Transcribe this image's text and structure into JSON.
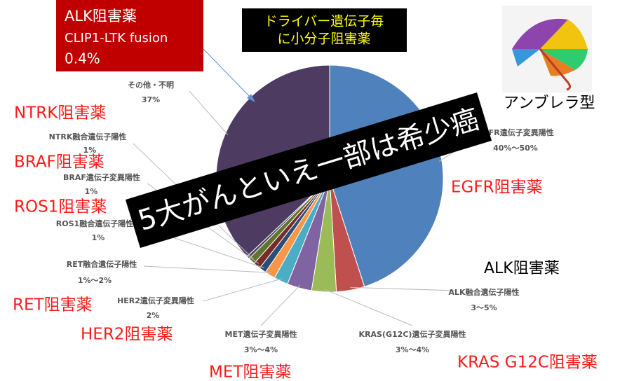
{
  "chart_data": {
    "type": "pie",
    "categories": [
      "EGFR遺伝子変異陽性",
      "ALK融合遺伝子陽性",
      "KRAS(G12C)遺伝子変異陽性",
      "MET遺伝子変異陽性",
      "HER2遺伝子変異陽性",
      "RET融合遺伝子陽性",
      "ROS1融合遺伝子陽性",
      "BRAF遺伝子変異陽性",
      "NTRK融合遺伝子陽性",
      "CLIP1-LTK fusion",
      "その他・不明"
    ],
    "values": [
      45,
      4,
      3.5,
      3.5,
      2,
      1.5,
      1,
      1,
      1,
      0.4,
      37
    ],
    "value_labels": [
      "40%～50%",
      "3～5%",
      "3%～4%",
      "3%～4%",
      "2%",
      "1%～2%",
      "1%",
      "1%",
      "1%",
      "0.4%",
      "37%"
    ],
    "colors": [
      "#4f81bd",
      "#c0504d",
      "#9bbb59",
      "#8064a2",
      "#4bacc6",
      "#f79646",
      "#2c4d75",
      "#772c2a",
      "#5f7530",
      "#4d3b62",
      "#4d3b62"
    ],
    "drug_labels": [
      "EGFR阻害薬",
      "ALK阻害薬",
      "KRAS G12C阻害薬",
      "MET阻害薬",
      "HER2阻害薬",
      "RET阻害薬",
      "ROS1阻害薬",
      "BRAF阻害薬",
      "NTRK阻害薬",
      "ALK阻害薬"
    ]
  },
  "title_box": [
    "ドライバー遺伝子毎",
    "に小分子阻害薬"
  ],
  "banner": "5大がんといえ一部は希少癌",
  "umbrella_label": "アンブレラ型"
}
